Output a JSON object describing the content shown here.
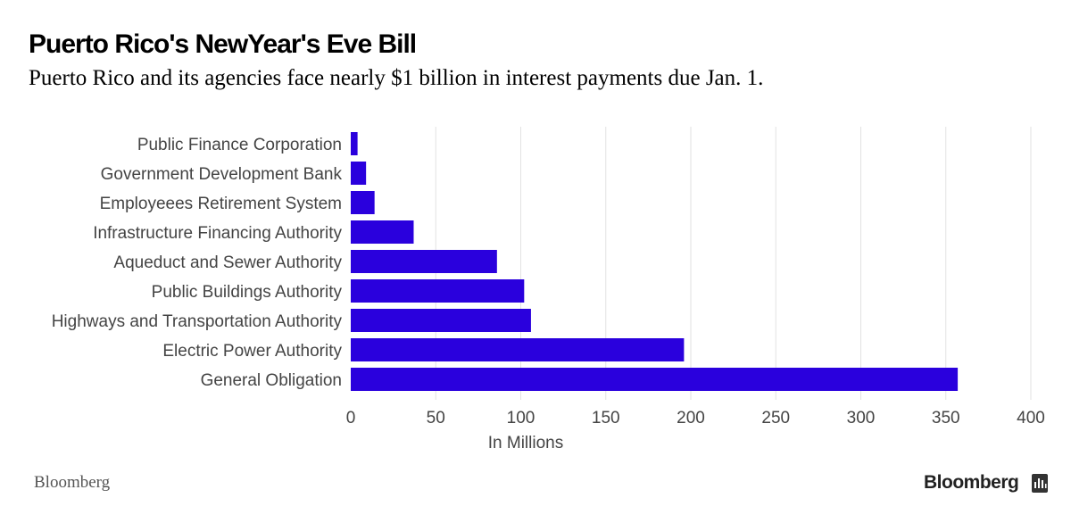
{
  "header": {
    "title": "Puerto Rico's NewYear's Eve Bill",
    "subtitle": "Puerto Rico and its agencies face nearly $1 billion in interest payments due Jan. 1."
  },
  "footer": {
    "source": "Bloomberg",
    "brand": "Bloomberg",
    "brand_icon": "bloomberg-terminal-icon"
  },
  "colors": {
    "bar": "#2a00dd",
    "grid": "#e2e2e2",
    "label": "#444444"
  },
  "chart_data": {
    "type": "bar",
    "orientation": "horizontal",
    "categories": [
      "Public Finance Corporation",
      "Government Development Bank",
      "Employeees Retirement System",
      "Infrastructure Financing Authority",
      "Aqueduct and Sewer Authority",
      "Public Buildings Authority",
      "Highways and Transportation Authority",
      "Electric Power Authority",
      "General Obligation"
    ],
    "values": [
      4,
      9,
      14,
      37,
      86,
      102,
      106,
      196,
      357
    ],
    "xlabel": "In Millions",
    "xlim": [
      0,
      400
    ],
    "xticks": [
      0,
      50,
      100,
      150,
      200,
      250,
      300,
      350,
      400
    ],
    "grid": "vertical"
  }
}
